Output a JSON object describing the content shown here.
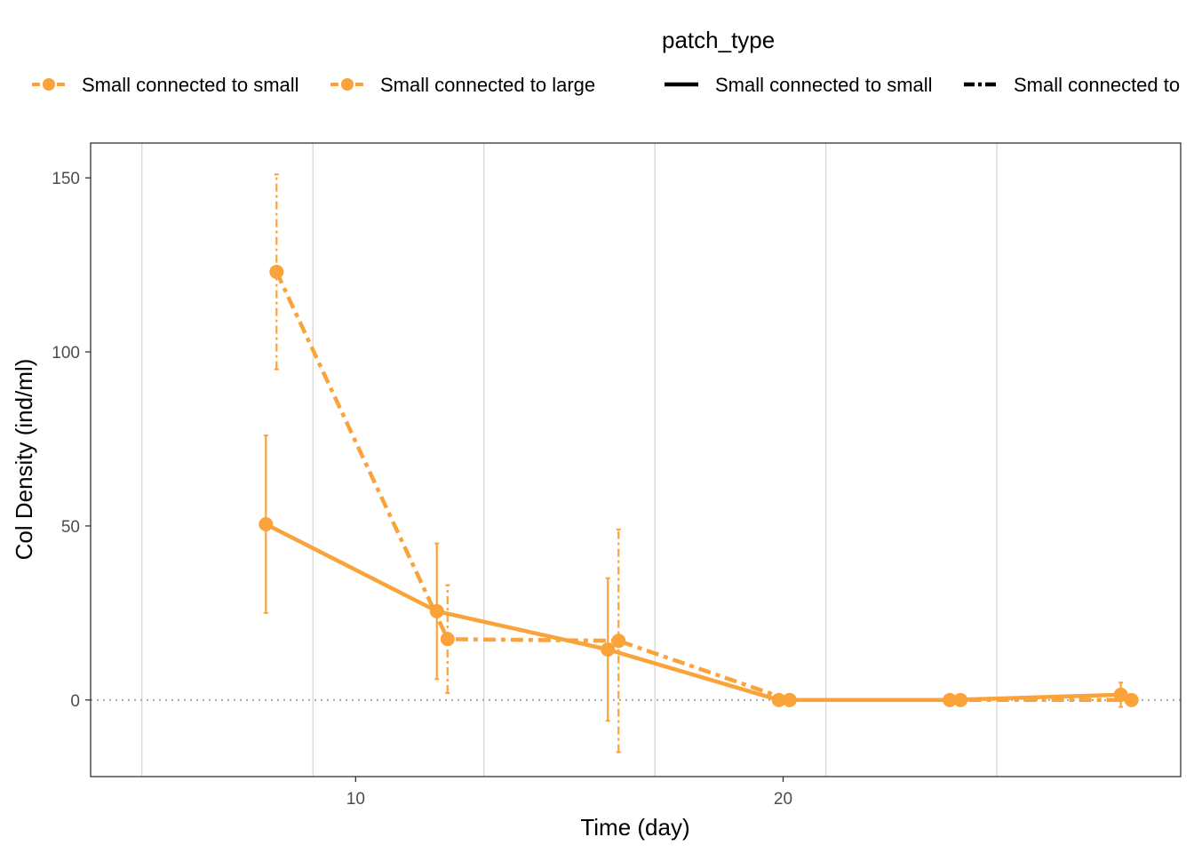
{
  "chart_data": {
    "type": "line",
    "xlabel": "Time (day)",
    "ylabel": "Col Density (ind/ml)",
    "xlim": [
      3.8,
      29.3
    ],
    "ylim": [
      -22,
      160
    ],
    "x_ticks": [
      10,
      20
    ],
    "x_tick_labels": [
      "10",
      "20"
    ],
    "y_ticks": [
      0,
      50,
      100,
      150
    ],
    "y_tick_labels": [
      "0",
      "50",
      "100",
      "150"
    ],
    "x_minor_gridlines": [
      5,
      9,
      13,
      17,
      21,
      25
    ],
    "x_major_gridlines": [
      5,
      9,
      13,
      17,
      21,
      25
    ],
    "reference_line": {
      "y": 0,
      "style": "dotted",
      "color": "#aaaaaa"
    },
    "grid": true,
    "legend_placement": "top",
    "legend_color": {
      "entries": [
        "Small connected to small",
        "Small connected to large"
      ]
    },
    "legend_linetype": {
      "title": "patch_type",
      "entries": [
        "Small connected to small",
        "Small connected to"
      ]
    },
    "color": "#F9A33A",
    "series": [
      {
        "name": "Small connected to small",
        "linestyle": "solid",
        "points": [
          {
            "x": 7.9,
            "y": 50.5,
            "ymin": 25,
            "ymax": 76
          },
          {
            "x": 11.9,
            "y": 25.5,
            "ymin": 6,
            "ymax": 45
          },
          {
            "x": 15.9,
            "y": 14.5,
            "ymin": -6,
            "ymax": 35
          },
          {
            "x": 19.9,
            "y": 0,
            "ymin": 0,
            "ymax": 0
          },
          {
            "x": 23.9,
            "y": 0,
            "ymin": 0,
            "ymax": 0
          },
          {
            "x": 27.9,
            "y": 1.5,
            "ymin": -2,
            "ymax": 5
          }
        ]
      },
      {
        "name": "Small connected to large",
        "linestyle": "dashed",
        "points": [
          {
            "x": 8.15,
            "y": 123,
            "ymin": 95,
            "ymax": 151
          },
          {
            "x": 12.15,
            "y": 17.5,
            "ymin": 2,
            "ymax": 33
          },
          {
            "x": 16.15,
            "y": 17,
            "ymin": -15,
            "ymax": 49
          },
          {
            "x": 20.15,
            "y": 0,
            "ymin": 0,
            "ymax": 0
          },
          {
            "x": 24.15,
            "y": 0,
            "ymin": 0,
            "ymax": 0
          },
          {
            "x": 28.15,
            "y": 0,
            "ymin": -1.5,
            "ymax": 1.5
          }
        ]
      }
    ]
  }
}
